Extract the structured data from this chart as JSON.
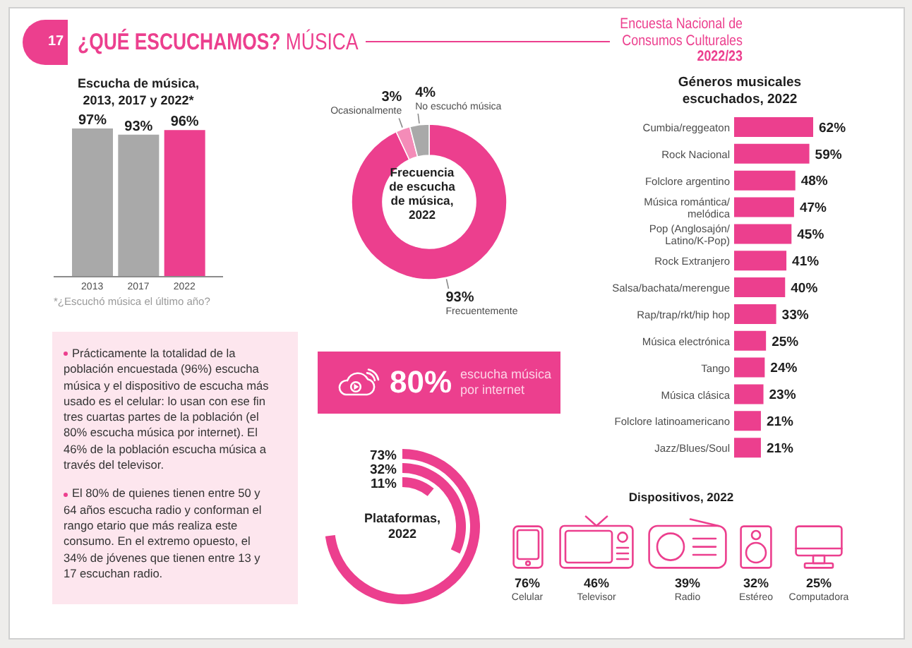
{
  "chart_data": [
    {
      "type": "other",
      "title": "¿QUÉ ESCUCHAMOS?",
      "subtitle": "MÚSICA",
      "annotations": [
        "17",
        "Encuesta Nacional de Consumos Culturales",
        "2022/23"
      ]
    },
    {
      "type": "bar",
      "title": "Escucha de música, 2013, 2017 y 2022*",
      "categories": [
        "2013",
        "2017",
        "2022"
      ],
      "values": [
        97,
        93,
        96
      ],
      "value_labels": [
        "97%",
        "93%",
        "96%"
      ],
      "colors": [
        "#a9a9a9",
        "#a9a9a9",
        "#ec3f8e"
      ],
      "annotations": [
        "*¿Escuchó música el último año?"
      ]
    },
    {
      "type": "donut",
      "title": "Frecuencia de escucha de música, 2022",
      "categories": [
        "Frecuentemente",
        "Ocasionalmente",
        "No escuchó música"
      ],
      "values": [
        93,
        3,
        4
      ],
      "value_labels": [
        "93%",
        "3%",
        "4%"
      ],
      "colors": [
        "#ec3f8e",
        "#f48cb8",
        "#a9a9a9"
      ]
    },
    {
      "type": "bar",
      "orientation": "horizontal",
      "title": "Géneros musicales escuchados, 2022",
      "categories": [
        "Cumbia/reggeaton",
        "Rock Nacional",
        "Folclore argentino",
        "Música romántica/melódica",
        "Pop (Anglosajón/Latino/K-Pop)",
        "Rock Extranjero",
        "Salsa/bachata/merengue",
        "Rap/trap/rkt/hip hop",
        "Música electrónica",
        "Tango",
        "Música clásica",
        "Folclore latinoamericano",
        "Jazz/Blues/Soul"
      ],
      "values": [
        62,
        59,
        48,
        47,
        45,
        41,
        40,
        33,
        25,
        24,
        23,
        21,
        21
      ],
      "value_labels": [
        "62%",
        "59%",
        "48%",
        "47%",
        "45%",
        "41%",
        "40%",
        "33%",
        "25%",
        "24%",
        "23%",
        "21%",
        "21%"
      ],
      "color": "#ec3f8e"
    },
    {
      "type": "other",
      "annotations": [
        "Prácticamente la totalidad de la población encuestada (96%) escucha música y el dispositivo de escucha más usado es el celular: lo usan con ese fin tres cuartas partes de la población (el 80% escucha música por internet). El 46% de la población escucha música a través del televisor.",
        "El 80% de quienes tienen entre 50 y 64 años escucha radio y conforman el rango etario que más realiza este consumo. En el extremo opuesto, el 34% de jóvenes que tienen entre 13 y 17 escuchan radio."
      ]
    },
    {
      "type": "other",
      "annotations": [
        "80%",
        "escucha música por internet"
      ]
    },
    {
      "type": "other",
      "title": "Plataformas, 2022",
      "categories": [
        null,
        null,
        null
      ],
      "values": [
        73,
        32,
        11
      ],
      "value_labels": [
        "73%",
        "32%",
        "11%"
      ],
      "color": "#ec3f8e"
    },
    {
      "type": "other",
      "title": "Dispositivos, 2022",
      "categories": [
        "Celular",
        "Televisor",
        "Radio",
        "Estéreo",
        "Computadora"
      ],
      "values": [
        76,
        46,
        39,
        32,
        25
      ],
      "value_labels": [
        "76%",
        "46%",
        "39%",
        "32%",
        "25%"
      ],
      "color": "#ec3f8e"
    }
  ]
}
